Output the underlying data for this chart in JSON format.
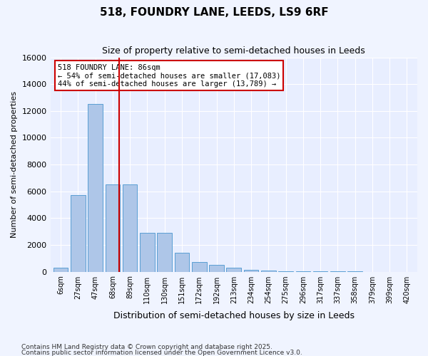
{
  "title": "518, FOUNDRY LANE, LEEDS, LS9 6RF",
  "subtitle": "Size of property relative to semi-detached houses in Leeds",
  "xlabel": "Distribution of semi-detached houses by size in Leeds",
  "ylabel": "Number of semi-detached properties",
  "bin_labels": [
    "6sqm",
    "27sqm",
    "47sqm",
    "68sqm",
    "89sqm",
    "110sqm",
    "130sqm",
    "151sqm",
    "172sqm",
    "192sqm",
    "213sqm",
    "234sqm",
    "254sqm",
    "275sqm",
    "296sqm",
    "317sqm",
    "337sqm",
    "358sqm",
    "379sqm",
    "399sqm",
    "420sqm"
  ],
  "bar_values": [
    300,
    5700,
    12500,
    6500,
    6500,
    2900,
    2900,
    1400,
    700,
    500,
    300,
    150,
    100,
    50,
    20,
    10,
    5,
    2,
    1,
    0,
    0
  ],
  "bar_color": "#aec6e8",
  "bar_edge_color": "#5a9fd4",
  "vline_x": 86,
  "vline_color": "#cc0000",
  "annotation_title": "518 FOUNDRY LANE: 86sqm",
  "annotation_line1": "← 54% of semi-detached houses are smaller (17,083)",
  "annotation_line2": "44% of semi-detached houses are larger (13,789) →",
  "annotation_box_color": "#cc0000",
  "ylim": [
    0,
    16000
  ],
  "yticks": [
    0,
    2000,
    4000,
    6000,
    8000,
    10000,
    12000,
    14000,
    16000
  ],
  "footer1": "Contains HM Land Registry data © Crown copyright and database right 2025.",
  "footer2": "Contains public sector information licensed under the Open Government Licence v3.0.",
  "background_color": "#f0f4ff",
  "plot_bg_color": "#e8eeff"
}
